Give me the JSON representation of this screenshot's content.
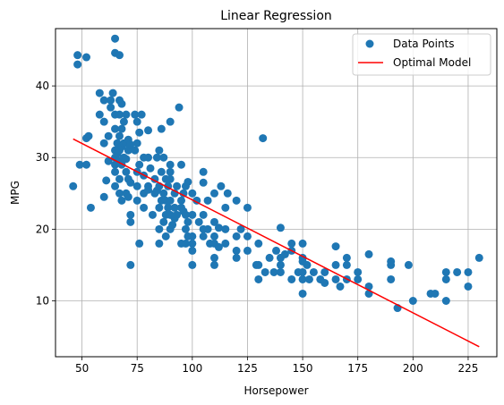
{
  "chart_data": {
    "type": "scatter",
    "title": "Linear Regression",
    "xlabel": "Horsepower",
    "ylabel": "MPG",
    "xlim": [
      38,
      238
    ],
    "ylim": [
      2.2,
      48
    ],
    "xticks": [
      50,
      75,
      100,
      125,
      150,
      175,
      200,
      225
    ],
    "yticks": [
      10,
      20,
      30,
      40
    ],
    "grid": true,
    "legend_position": "top-right",
    "colors": {
      "points": "#1f77b4",
      "line": "#ff0000"
    },
    "series": [
      {
        "name": "Data Points",
        "kind": "scatter",
        "color": "#1f77b4",
        "points": [
          [
            46,
            26
          ],
          [
            48,
            43
          ],
          [
            48,
            44.3
          ],
          [
            49,
            29
          ],
          [
            52,
            44
          ],
          [
            52,
            29
          ],
          [
            52,
            32.7
          ],
          [
            53,
            33
          ],
          [
            54,
            23
          ],
          [
            58,
            39
          ],
          [
            58,
            36
          ],
          [
            60,
            35
          ],
          [
            60,
            38
          ],
          [
            60,
            32
          ],
          [
            60,
            24.5
          ],
          [
            61,
            26.8
          ],
          [
            62,
            33
          ],
          [
            62,
            29.5
          ],
          [
            63,
            38
          ],
          [
            63,
            37
          ],
          [
            64,
            39
          ],
          [
            65,
            46.6
          ],
          [
            65,
            44.6
          ],
          [
            65,
            34
          ],
          [
            65,
            31
          ],
          [
            65,
            30
          ],
          [
            65,
            29
          ],
          [
            65,
            28
          ],
          [
            65,
            26
          ],
          [
            65,
            36
          ],
          [
            66,
            32
          ],
          [
            66,
            30.5
          ],
          [
            67,
            33
          ],
          [
            67,
            31
          ],
          [
            67,
            29.5
          ],
          [
            67,
            27
          ],
          [
            67,
            44.3
          ],
          [
            67,
            36
          ],
          [
            67,
            38
          ],
          [
            67,
            25
          ],
          [
            68,
            37.5
          ],
          [
            68,
            34
          ],
          [
            68,
            31.5
          ],
          [
            68,
            29
          ],
          [
            68,
            24
          ],
          [
            69,
            32
          ],
          [
            69,
            30
          ],
          [
            69,
            35
          ],
          [
            70,
            32
          ],
          [
            70,
            28
          ],
          [
            70,
            25
          ],
          [
            70,
            29.8
          ],
          [
            70,
            36
          ],
          [
            71,
            31
          ],
          [
            71,
            27
          ],
          [
            71,
            32.5
          ],
          [
            71,
            24.5
          ],
          [
            72,
            15
          ],
          [
            72,
            21
          ],
          [
            72,
            22
          ],
          [
            72,
            26.5
          ],
          [
            72,
            31.8
          ],
          [
            74,
            36
          ],
          [
            74,
            31
          ],
          [
            75,
            28
          ],
          [
            75,
            26
          ],
          [
            75,
            24
          ],
          [
            75,
            32
          ],
          [
            75,
            35
          ],
          [
            76,
            33.5
          ],
          [
            76,
            29
          ],
          [
            76,
            18
          ],
          [
            77,
            36
          ],
          [
            78,
            30
          ],
          [
            78,
            27.5
          ],
          [
            78,
            25
          ],
          [
            78,
            23
          ],
          [
            80,
            26
          ],
          [
            80,
            30
          ],
          [
            80,
            33.8
          ],
          [
            80,
            25.5
          ],
          [
            81,
            28.5
          ],
          [
            82,
            22
          ],
          [
            83,
            25
          ],
          [
            83,
            27
          ],
          [
            84,
            25.4
          ],
          [
            84,
            30
          ],
          [
            85,
            31
          ],
          [
            85,
            26
          ],
          [
            85,
            23
          ],
          [
            85,
            20
          ],
          [
            85,
            18
          ],
          [
            86,
            28
          ],
          [
            86,
            34
          ],
          [
            86,
            24
          ],
          [
            87,
            30
          ],
          [
            87,
            25
          ],
          [
            87,
            21
          ],
          [
            88,
            27
          ],
          [
            88,
            19
          ],
          [
            88,
            24
          ],
          [
            88,
            22
          ],
          [
            89,
            26
          ],
          [
            89,
            23
          ],
          [
            90,
            29
          ],
          [
            90,
            27
          ],
          [
            90,
            24
          ],
          [
            90,
            22
          ],
          [
            90,
            20
          ],
          [
            90,
            35
          ],
          [
            90,
            28
          ],
          [
            91,
            20.6
          ],
          [
            92,
            25
          ],
          [
            92,
            23
          ],
          [
            92,
            21.5
          ],
          [
            93,
            26
          ],
          [
            93,
            22
          ],
          [
            94,
            37
          ],
          [
            95,
            29
          ],
          [
            95,
            24
          ],
          [
            95,
            23
          ],
          [
            95,
            18
          ],
          [
            96,
            22.5
          ],
          [
            96,
            25
          ],
          [
            97,
            26
          ],
          [
            97,
            22
          ],
          [
            97,
            20
          ],
          [
            97,
            18
          ],
          [
            98,
            26.6
          ],
          [
            98,
            21
          ],
          [
            98,
            19
          ],
          [
            100,
            25
          ],
          [
            100,
            22
          ],
          [
            100,
            19
          ],
          [
            100,
            18
          ],
          [
            100,
            17
          ],
          [
            100,
            15
          ],
          [
            102,
            24
          ],
          [
            103,
            21
          ],
          [
            105,
            22
          ],
          [
            105,
            20
          ],
          [
            105,
            19
          ],
          [
            105,
            28
          ],
          [
            105,
            26.5
          ],
          [
            107,
            20
          ],
          [
            107,
            24
          ],
          [
            108,
            18
          ],
          [
            110,
            25
          ],
          [
            110,
            21
          ],
          [
            110,
            19
          ],
          [
            110,
            18
          ],
          [
            110,
            16
          ],
          [
            110,
            15
          ],
          [
            112,
            20.2
          ],
          [
            112,
            17.5
          ],
          [
            113,
            26
          ],
          [
            115,
            23
          ],
          [
            115,
            20
          ],
          [
            115,
            18
          ],
          [
            116,
            25
          ],
          [
            120,
            24
          ],
          [
            120,
            19
          ],
          [
            120,
            17
          ],
          [
            120,
            16
          ],
          [
            122,
            20
          ],
          [
            125,
            23
          ],
          [
            125,
            19
          ],
          [
            125,
            17
          ],
          [
            129,
            15
          ],
          [
            130,
            18
          ],
          [
            130,
            15
          ],
          [
            130,
            13
          ],
          [
            132,
            32.7
          ],
          [
            133,
            14
          ],
          [
            135,
            16
          ],
          [
            137,
            14
          ],
          [
            138,
            17
          ],
          [
            140,
            15
          ],
          [
            140,
            14
          ],
          [
            140,
            16
          ],
          [
            140,
            20.2
          ],
          [
            142,
            16.5
          ],
          [
            145,
            18
          ],
          [
            145,
            17
          ],
          [
            145,
            13
          ],
          [
            148,
            14
          ],
          [
            150,
            18
          ],
          [
            150,
            16
          ],
          [
            150,
            14
          ],
          [
            150,
            13
          ],
          [
            150,
            11
          ],
          [
            150,
            15.5
          ],
          [
            152,
            15
          ],
          [
            153,
            13
          ],
          [
            155,
            14
          ],
          [
            158,
            13
          ],
          [
            160,
            14
          ],
          [
            160,
            12.5
          ],
          [
            165,
            15
          ],
          [
            165,
            13
          ],
          [
            165,
            17.6
          ],
          [
            167,
            12
          ],
          [
            170,
            15
          ],
          [
            170,
            13
          ],
          [
            170,
            16
          ],
          [
            175,
            14
          ],
          [
            175,
            13
          ],
          [
            180,
            11
          ],
          [
            180,
            12
          ],
          [
            180,
            16.5
          ],
          [
            190,
            15
          ],
          [
            190,
            13
          ],
          [
            190,
            15.5
          ],
          [
            193,
            9
          ],
          [
            198,
            15
          ],
          [
            200,
            10
          ],
          [
            208,
            11
          ],
          [
            210,
            11
          ],
          [
            215,
            10
          ],
          [
            215,
            13
          ],
          [
            215,
            14
          ],
          [
            220,
            14
          ],
          [
            225,
            12
          ],
          [
            225,
            14
          ],
          [
            230,
            16
          ]
        ]
      },
      {
        "name": "Optimal Model",
        "kind": "line",
        "color": "#ff0000",
        "points": [
          [
            46,
            32.6
          ],
          [
            230,
            3.6
          ]
        ]
      }
    ]
  }
}
